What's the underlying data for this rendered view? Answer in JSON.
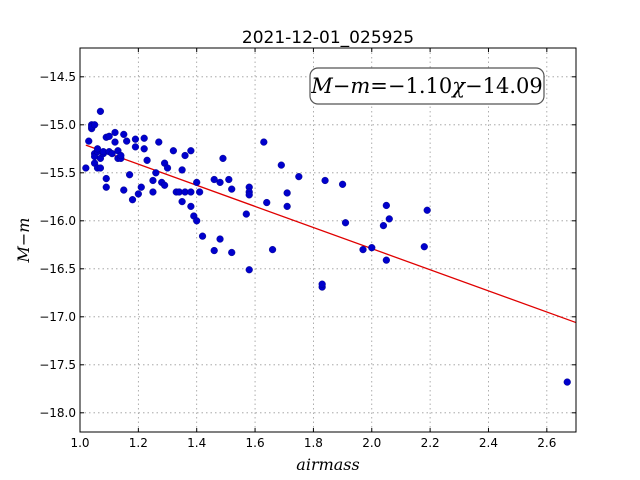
{
  "chart_data": {
    "type": "scatter",
    "title": "2021-12-01_025925",
    "xlabel": "airmass",
    "ylabel": "M−m",
    "xlim": [
      1.0,
      2.7
    ],
    "ylim": [
      -18.2,
      -14.2
    ],
    "x_ticks": [
      "1.0",
      "1.2",
      "1.4",
      "1.6",
      "1.8",
      "2.0",
      "2.2",
      "2.4",
      "2.6"
    ],
    "y_ticks": [
      "−14.5",
      "−15.0",
      "−15.5",
      "−16.0",
      "−16.5",
      "−17.0",
      "−17.5",
      "−18.0"
    ],
    "grid": true,
    "colors": {
      "points": "#0000cc",
      "fit": "#e00000"
    },
    "annotation": {
      "text": "M−m=−1.10χ−14.09",
      "position": "top-right",
      "lhs": "M−m",
      "eq": "=",
      "coef": "−1.10",
      "var": "χ",
      "const": "−14.09"
    },
    "fit": {
      "slope": -1.1,
      "intercept": -14.09,
      "x_range": [
        1.02,
        2.7
      ]
    },
    "points": [
      {
        "x": 1.02,
        "y": -15.45
      },
      {
        "x": 1.03,
        "y": -15.17
      },
      {
        "x": 1.04,
        "y": -15.04
      },
      {
        "x": 1.04,
        "y": -15.0
      },
      {
        "x": 1.04,
        "y": -15.02
      },
      {
        "x": 1.05,
        "y": -15.0
      },
      {
        "x": 1.05,
        "y": -15.3
      },
      {
        "x": 1.05,
        "y": -15.33
      },
      {
        "x": 1.05,
        "y": -15.4
      },
      {
        "x": 1.06,
        "y": -15.28
      },
      {
        "x": 1.06,
        "y": -15.45
      },
      {
        "x": 1.06,
        "y": -15.25
      },
      {
        "x": 1.07,
        "y": -14.86
      },
      {
        "x": 1.07,
        "y": -15.35
      },
      {
        "x": 1.07,
        "y": -15.45
      },
      {
        "x": 1.08,
        "y": -15.3
      },
      {
        "x": 1.08,
        "y": -15.28
      },
      {
        "x": 1.09,
        "y": -15.56
      },
      {
        "x": 1.09,
        "y": -15.65
      },
      {
        "x": 1.09,
        "y": -15.13
      },
      {
        "x": 1.1,
        "y": -15.12
      },
      {
        "x": 1.1,
        "y": -15.28
      },
      {
        "x": 1.11,
        "y": -15.3
      },
      {
        "x": 1.12,
        "y": -15.08
      },
      {
        "x": 1.12,
        "y": -15.18
      },
      {
        "x": 1.13,
        "y": -15.35
      },
      {
        "x": 1.13,
        "y": -15.27
      },
      {
        "x": 1.14,
        "y": -15.35
      },
      {
        "x": 1.14,
        "y": -15.32
      },
      {
        "x": 1.15,
        "y": -15.1
      },
      {
        "x": 1.15,
        "y": -15.68
      },
      {
        "x": 1.16,
        "y": -15.17
      },
      {
        "x": 1.17,
        "y": -15.52
      },
      {
        "x": 1.18,
        "y": -15.78
      },
      {
        "x": 1.19,
        "y": -15.15
      },
      {
        "x": 1.19,
        "y": -15.23
      },
      {
        "x": 1.2,
        "y": -15.72
      },
      {
        "x": 1.21,
        "y": -15.65
      },
      {
        "x": 1.22,
        "y": -15.14
      },
      {
        "x": 1.22,
        "y": -15.25
      },
      {
        "x": 1.23,
        "y": -15.37
      },
      {
        "x": 1.25,
        "y": -15.58
      },
      {
        "x": 1.25,
        "y": -15.7
      },
      {
        "x": 1.26,
        "y": -15.5
      },
      {
        "x": 1.27,
        "y": -15.18
      },
      {
        "x": 1.28,
        "y": -15.6
      },
      {
        "x": 1.29,
        "y": -15.63
      },
      {
        "x": 1.29,
        "y": -15.4
      },
      {
        "x": 1.3,
        "y": -15.45
      },
      {
        "x": 1.32,
        "y": -15.27
      },
      {
        "x": 1.33,
        "y": -15.7
      },
      {
        "x": 1.34,
        "y": -15.7
      },
      {
        "x": 1.35,
        "y": -15.47
      },
      {
        "x": 1.35,
        "y": -15.8
      },
      {
        "x": 1.36,
        "y": -15.7
      },
      {
        "x": 1.36,
        "y": -15.32
      },
      {
        "x": 1.38,
        "y": -15.27
      },
      {
        "x": 1.38,
        "y": -15.85
      },
      {
        "x": 1.38,
        "y": -15.7
      },
      {
        "x": 1.39,
        "y": -15.95
      },
      {
        "x": 1.4,
        "y": -16.0
      },
      {
        "x": 1.4,
        "y": -15.6
      },
      {
        "x": 1.41,
        "y": -15.7
      },
      {
        "x": 1.42,
        "y": -16.16
      },
      {
        "x": 1.46,
        "y": -15.57
      },
      {
        "x": 1.46,
        "y": -16.31
      },
      {
        "x": 1.48,
        "y": -15.6
      },
      {
        "x": 1.48,
        "y": -16.19
      },
      {
        "x": 1.49,
        "y": -15.35
      },
      {
        "x": 1.51,
        "y": -15.57
      },
      {
        "x": 1.52,
        "y": -16.33
      },
      {
        "x": 1.52,
        "y": -15.67
      },
      {
        "x": 1.57,
        "y": -15.93
      },
      {
        "x": 1.58,
        "y": -15.65
      },
      {
        "x": 1.58,
        "y": -15.7
      },
      {
        "x": 1.58,
        "y": -15.73
      },
      {
        "x": 1.58,
        "y": -16.51
      },
      {
        "x": 1.63,
        "y": -15.18
      },
      {
        "x": 1.64,
        "y": -15.81
      },
      {
        "x": 1.66,
        "y": -16.3
      },
      {
        "x": 1.69,
        "y": -15.42
      },
      {
        "x": 1.71,
        "y": -15.85
      },
      {
        "x": 1.71,
        "y": -15.71
      },
      {
        "x": 1.75,
        "y": -15.54
      },
      {
        "x": 1.83,
        "y": -16.69
      },
      {
        "x": 1.83,
        "y": -16.66
      },
      {
        "x": 1.84,
        "y": -15.58
      },
      {
        "x": 1.9,
        "y": -15.62
      },
      {
        "x": 1.91,
        "y": -16.02
      },
      {
        "x": 1.97,
        "y": -16.3
      },
      {
        "x": 2.0,
        "y": -16.28
      },
      {
        "x": 2.04,
        "y": -16.05
      },
      {
        "x": 2.05,
        "y": -16.41
      },
      {
        "x": 2.05,
        "y": -15.84
      },
      {
        "x": 2.06,
        "y": -15.98
      },
      {
        "x": 2.18,
        "y": -16.27
      },
      {
        "x": 2.19,
        "y": -15.89
      },
      {
        "x": 2.67,
        "y": -17.68
      }
    ]
  }
}
